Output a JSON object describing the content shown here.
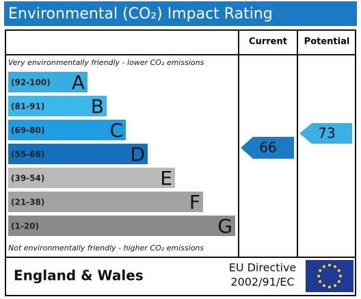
{
  "header": {
    "title": "Environmental (CO₂) Impact Rating"
  },
  "columns": [
    "Current",
    "Potential"
  ],
  "top_note": "Very environmentally friendly - lower CO₂ emissions",
  "bottom_note": "Not environmentally friendly - higher CO₂ emissions",
  "bands": [
    {
      "range": "(92-100)",
      "letter": "A"
    },
    {
      "range": "(81-91)",
      "letter": "B"
    },
    {
      "range": "(69-80)",
      "letter": "C"
    },
    {
      "range": "(55-68)",
      "letter": "D"
    },
    {
      "range": "(39-54)",
      "letter": "E"
    },
    {
      "range": "(21-38)",
      "letter": "F"
    },
    {
      "range": "(1-20)",
      "letter": "G"
    }
  ],
  "current_rating": 66,
  "potential_rating": 73,
  "footer": {
    "region": "England & Wales",
    "directive": [
      "EU Directive",
      "2002/91/EC"
    ]
  }
}
